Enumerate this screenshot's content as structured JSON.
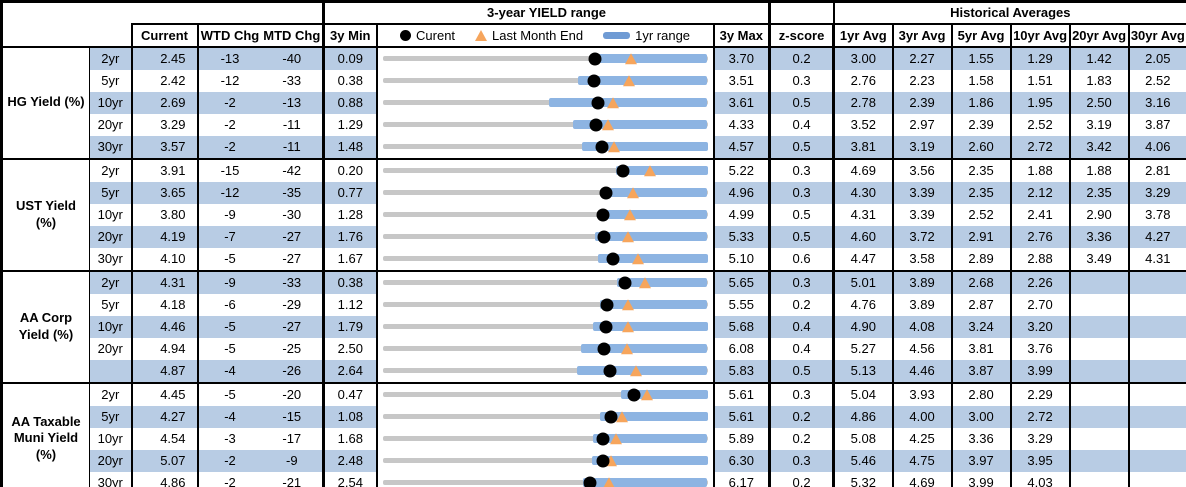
{
  "colors": {
    "band_blue": "#B8CCE4",
    "bar_blue": "#8DB4E2",
    "legend_bar_blue": "#6F9BD4",
    "track_gray": "#C7C7C7",
    "triangle_orange": "#F6A55C",
    "marker_black": "#000000",
    "border_black": "#000000"
  },
  "header": {
    "range_title": "3-year YIELD range",
    "historical_title": "Historical Averages",
    "col_current": "Current",
    "col_wtd": "WTD Chg",
    "col_mtd": "MTD Chg",
    "col_min": "3y Min",
    "col_max": "3y Max",
    "col_z": "z-score",
    "avg_cols": [
      "1yr Avg",
      "3yr Avg",
      "5yr Avg",
      "10yr Avg",
      "20yr Avg",
      "30yr Avg"
    ],
    "legend": {
      "current": "Curent",
      "last_month": "Last Month End",
      "range": "1yr range"
    }
  },
  "chart_data": {
    "type": "table",
    "title": "3-year YIELD range",
    "row_chart_type": "range-bar",
    "legend_entries": [
      "Curent (black dot)",
      "Last Month End (orange triangle)",
      "1yr range (blue bar)"
    ],
    "sections": [
      {
        "label": "HG Yield (%)",
        "rows": [
          {
            "tenor": "2yr",
            "current": "2.45",
            "wtd_chg": "-13",
            "mtd_chg": "-40",
            "min3y": "0.09",
            "max3y": "3.70",
            "z_score": "0.2",
            "avgs": [
              "3.00",
              "2.27",
              "1.55",
              "1.29",
              "1.42",
              "2.05"
            ],
            "range_chart": {
              "min": 0.09,
              "max": 3.7,
              "current": 2.45,
              "last_month_end": 2.85,
              "bar_low": 2.44,
              "bar_high": 3.7
            }
          },
          {
            "tenor": "5yr",
            "current": "2.42",
            "wtd_chg": "-12",
            "mtd_chg": "-33",
            "min3y": "0.38",
            "max3y": "3.51",
            "z_score": "0.3",
            "avgs": [
              "2.76",
              "2.23",
              "1.58",
              "1.51",
              "1.83",
              "2.52"
            ],
            "range_chart": {
              "min": 0.38,
              "max": 3.51,
              "current": 2.42,
              "last_month_end": 2.75,
              "bar_low": 2.26,
              "bar_high": 3.51
            }
          },
          {
            "tenor": "10yr",
            "current": "2.69",
            "wtd_chg": "-2",
            "mtd_chg": "-13",
            "min3y": "0.88",
            "max3y": "3.61",
            "z_score": "0.5",
            "avgs": [
              "2.78",
              "2.39",
              "1.86",
              "1.95",
              "2.50",
              "3.16"
            ],
            "range_chart": {
              "min": 0.88,
              "max": 3.61,
              "current": 2.69,
              "last_month_end": 2.82,
              "bar_low": 2.28,
              "bar_high": 3.61
            }
          },
          {
            "tenor": "20yr",
            "current": "3.29",
            "wtd_chg": "-2",
            "mtd_chg": "-11",
            "min3y": "1.29",
            "max3y": "4.33",
            "z_score": "0.4",
            "avgs": [
              "3.52",
              "2.97",
              "2.39",
              "2.52",
              "3.19",
              "3.87"
            ],
            "range_chart": {
              "min": 1.29,
              "max": 4.33,
              "current": 3.29,
              "last_month_end": 3.4,
              "bar_low": 3.07,
              "bar_high": 4.33
            }
          },
          {
            "tenor": "30yr",
            "current": "3.57",
            "wtd_chg": "-2",
            "mtd_chg": "-11",
            "min3y": "1.48",
            "max3y": "4.57",
            "z_score": "0.5",
            "avgs": [
              "3.81",
              "3.19",
              "2.60",
              "2.72",
              "3.42",
              "4.06"
            ],
            "range_chart": {
              "min": 1.48,
              "max": 4.57,
              "current": 3.57,
              "last_month_end": 3.68,
              "bar_low": 3.38,
              "bar_high": 4.57
            }
          }
        ]
      },
      {
        "label": "UST Yield (%)",
        "rows": [
          {
            "tenor": "2yr",
            "current": "3.91",
            "wtd_chg": "-15",
            "mtd_chg": "-42",
            "min3y": "0.20",
            "max3y": "5.22",
            "z_score": "0.3",
            "avgs": [
              "4.69",
              "3.56",
              "2.35",
              "1.88",
              "1.88",
              "2.81"
            ],
            "range_chart": {
              "min": 0.2,
              "max": 5.22,
              "current": 3.91,
              "last_month_end": 4.33,
              "bar_low": 3.81,
              "bar_high": 5.22
            }
          },
          {
            "tenor": "5yr",
            "current": "3.65",
            "wtd_chg": "-12",
            "mtd_chg": "-35",
            "min3y": "0.77",
            "max3y": "4.96",
            "z_score": "0.3",
            "avgs": [
              "4.30",
              "3.39",
              "2.35",
              "2.12",
              "2.35",
              "3.29"
            ],
            "range_chart": {
              "min": 0.77,
              "max": 4.96,
              "current": 3.65,
              "last_month_end": 4.0,
              "bar_low": 3.59,
              "bar_high": 4.96
            }
          },
          {
            "tenor": "10yr",
            "current": "3.80",
            "wtd_chg": "-9",
            "mtd_chg": "-30",
            "min3y": "1.28",
            "max3y": "4.99",
            "z_score": "0.5",
            "avgs": [
              "4.31",
              "3.39",
              "2.52",
              "2.41",
              "2.90",
              "3.78"
            ],
            "range_chart": {
              "min": 1.28,
              "max": 4.99,
              "current": 3.8,
              "last_month_end": 4.1,
              "bar_low": 3.76,
              "bar_high": 4.99
            }
          },
          {
            "tenor": "20yr",
            "current": "4.19",
            "wtd_chg": "-7",
            "mtd_chg": "-27",
            "min3y": "1.76",
            "max3y": "5.33",
            "z_score": "0.5",
            "avgs": [
              "4.60",
              "3.72",
              "2.91",
              "2.76",
              "3.36",
              "4.27"
            ],
            "range_chart": {
              "min": 1.76,
              "max": 5.33,
              "current": 4.19,
              "last_month_end": 4.46,
              "bar_low": 4.09,
              "bar_high": 5.33
            }
          },
          {
            "tenor": "30yr",
            "current": "4.10",
            "wtd_chg": "-5",
            "mtd_chg": "-27",
            "min3y": "1.67",
            "max3y": "5.10",
            "z_score": "0.6",
            "avgs": [
              "4.47",
              "3.58",
              "2.89",
              "2.88",
              "3.49",
              "4.31"
            ],
            "range_chart": {
              "min": 1.67,
              "max": 5.1,
              "current": 4.1,
              "last_month_end": 4.37,
              "bar_low": 3.94,
              "bar_high": 5.1
            }
          }
        ]
      },
      {
        "label": "AA Corp Yield (%)",
        "rows": [
          {
            "tenor": "2yr",
            "current": "4.31",
            "wtd_chg": "-9",
            "mtd_chg": "-33",
            "min3y": "0.38",
            "max3y": "5.65",
            "z_score": "0.3",
            "avgs": [
              "5.01",
              "3.89",
              "2.68",
              "2.26",
              "",
              ""
            ],
            "range_chart": {
              "min": 0.38,
              "max": 5.65,
              "current": 4.31,
              "last_month_end": 4.64,
              "bar_low": 4.19,
              "bar_high": 5.65
            }
          },
          {
            "tenor": "5yr",
            "current": "4.18",
            "wtd_chg": "-6",
            "mtd_chg": "-29",
            "min3y": "1.12",
            "max3y": "5.55",
            "z_score": "0.2",
            "avgs": [
              "4.76",
              "3.89",
              "2.87",
              "2.70",
              "",
              ""
            ],
            "range_chart": {
              "min": 1.12,
              "max": 5.55,
              "current": 4.18,
              "last_month_end": 4.47,
              "bar_low": 4.08,
              "bar_high": 5.55
            }
          },
          {
            "tenor": "10yr",
            "current": "4.46",
            "wtd_chg": "-5",
            "mtd_chg": "-27",
            "min3y": "1.79",
            "max3y": "5.68",
            "z_score": "0.4",
            "avgs": [
              "4.90",
              "4.08",
              "3.24",
              "3.20",
              "",
              ""
            ],
            "range_chart": {
              "min": 1.79,
              "max": 5.68,
              "current": 4.46,
              "last_month_end": 4.73,
              "bar_low": 4.31,
              "bar_high": 5.68
            }
          },
          {
            "tenor": "20yr",
            "current": "4.94",
            "wtd_chg": "-5",
            "mtd_chg": "-25",
            "min3y": "2.50",
            "max3y": "6.08",
            "z_score": "0.4",
            "avgs": [
              "5.27",
              "4.56",
              "3.81",
              "3.76",
              "",
              ""
            ],
            "range_chart": {
              "min": 2.5,
              "max": 6.08,
              "current": 4.94,
              "last_month_end": 5.19,
              "bar_low": 4.69,
              "bar_high": 6.08
            }
          },
          {
            "tenor": "",
            "current": "4.87",
            "wtd_chg": "-4",
            "mtd_chg": "-26",
            "min3y": "2.64",
            "max3y": "5.83",
            "z_score": "0.5",
            "avgs": [
              "5.13",
              "4.46",
              "3.87",
              "3.99",
              "",
              ""
            ],
            "range_chart": {
              "min": 2.64,
              "max": 5.83,
              "current": 4.87,
              "last_month_end": 5.13,
              "bar_low": 4.55,
              "bar_high": 5.83
            }
          }
        ]
      },
      {
        "label": "AA Taxable Muni Yield (%)",
        "rows": [
          {
            "tenor": "2yr",
            "current": "4.45",
            "wtd_chg": "-5",
            "mtd_chg": "-20",
            "min3y": "0.47",
            "max3y": "5.61",
            "z_score": "0.3",
            "avgs": [
              "5.04",
              "3.93",
              "2.80",
              "2.29",
              "",
              ""
            ],
            "range_chart": {
              "min": 0.47,
              "max": 5.61,
              "current": 4.45,
              "last_month_end": 4.65,
              "bar_low": 4.24,
              "bar_high": 5.61
            }
          },
          {
            "tenor": "5yr",
            "current": "4.27",
            "wtd_chg": "-4",
            "mtd_chg": "-15",
            "min3y": "1.08",
            "max3y": "5.61",
            "z_score": "0.2",
            "avgs": [
              "4.86",
              "4.00",
              "3.00",
              "2.72",
              "",
              ""
            ],
            "range_chart": {
              "min": 1.08,
              "max": 5.61,
              "current": 4.27,
              "last_month_end": 4.42,
              "bar_low": 4.11,
              "bar_high": 5.61
            }
          },
          {
            "tenor": "10yr",
            "current": "4.54",
            "wtd_chg": "-3",
            "mtd_chg": "-17",
            "min3y": "1.68",
            "max3y": "5.89",
            "z_score": "0.2",
            "avgs": [
              "5.08",
              "4.25",
              "3.36",
              "3.29",
              "",
              ""
            ],
            "range_chart": {
              "min": 1.68,
              "max": 5.89,
              "current": 4.54,
              "last_month_end": 4.71,
              "bar_low": 4.41,
              "bar_high": 5.89
            }
          },
          {
            "tenor": "20yr",
            "current": "5.07",
            "wtd_chg": "-2",
            "mtd_chg": "-9",
            "min3y": "2.48",
            "max3y": "6.30",
            "z_score": "0.3",
            "avgs": [
              "5.46",
              "4.75",
              "3.97",
              "3.95",
              "",
              ""
            ],
            "range_chart": {
              "min": 2.48,
              "max": 6.3,
              "current": 5.07,
              "last_month_end": 5.16,
              "bar_low": 4.94,
              "bar_high": 6.3
            }
          },
          {
            "tenor": "30yr",
            "current": "4.86",
            "wtd_chg": "-2",
            "mtd_chg": "-21",
            "min3y": "2.54",
            "max3y": "6.17",
            "z_score": "0.2",
            "avgs": [
              "5.32",
              "4.69",
              "3.99",
              "4.03",
              "",
              ""
            ],
            "range_chart": {
              "min": 2.54,
              "max": 6.17,
              "current": 4.86,
              "last_month_end": 5.07,
              "bar_low": 4.78,
              "bar_high": 6.17
            }
          }
        ]
      }
    ]
  }
}
